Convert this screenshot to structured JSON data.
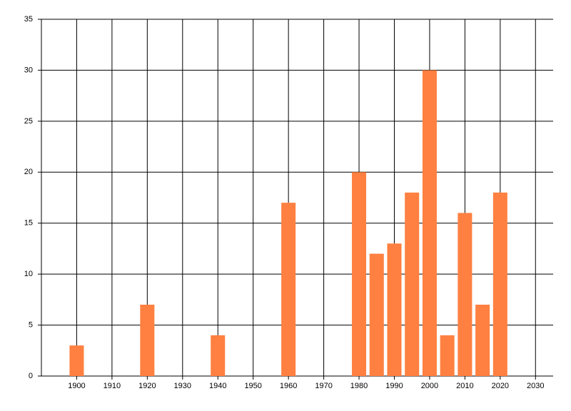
{
  "chart_data": {
    "type": "bar",
    "x": [
      1900,
      1920,
      1940,
      1960,
      1980,
      1985,
      1990,
      1995,
      2000,
      2005,
      2010,
      2015,
      2020
    ],
    "values": [
      3,
      7,
      4,
      17,
      20,
      12,
      13,
      18,
      30,
      4,
      16,
      7,
      18
    ],
    "color": "#ff8040",
    "xlim": [
      1890,
      2035
    ],
    "xticks": [
      1900,
      1910,
      1920,
      1930,
      1940,
      1950,
      1960,
      1970,
      1980,
      1990,
      2000,
      2010,
      2020,
      2030
    ],
    "ylim": [
      0,
      35
    ],
    "yticks": [
      0,
      5,
      10,
      15,
      20,
      25,
      30,
      35
    ],
    "grid": true
  }
}
